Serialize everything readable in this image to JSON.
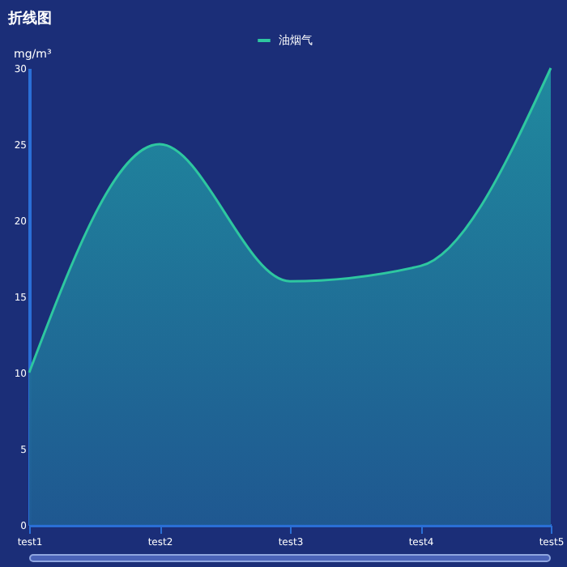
{
  "chart_data": {
    "type": "area",
    "title": "折线图",
    "ylabel": "mg/m³",
    "categories": [
      "test1",
      "test2",
      "test3",
      "test4",
      "test5"
    ],
    "series": [
      {
        "name": "油烟气",
        "color": "#2ec7a0",
        "values": [
          10,
          25,
          16,
          17,
          30
        ]
      }
    ],
    "ylim": [
      0,
      30
    ],
    "yticks": [
      0,
      5,
      10,
      15,
      20,
      25,
      30
    ],
    "grid": false,
    "legend": "top",
    "marker": "none"
  }
}
